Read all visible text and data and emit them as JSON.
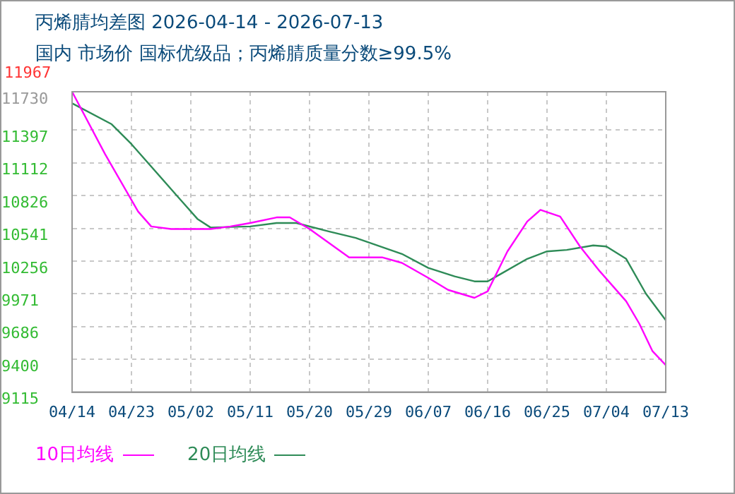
{
  "chart_data": {
    "type": "line",
    "title": "丙烯腈均差图 2026-04-14 - 2026-07-13",
    "subtitle": "国内 市场价 国标优级品；丙烯腈质量分数≥99.5%",
    "annotations": [
      "11967"
    ],
    "series": [
      {
        "name": "10日均线",
        "color": "#ff00ff",
        "x": [
          "--04-14",
          "--04-19",
          "--04-24",
          "--04-26",
          "--04-29",
          "--05-05",
          "--05-08",
          "--05-11",
          "--05-15",
          "--05-17",
          "--05-20",
          "--05-26",
          "--05-31",
          "--06-03",
          "--06-07",
          "--06-10",
          "--06-14",
          "--06-16",
          "--06-19",
          "--06-22",
          "--06-24",
          "--06-27",
          "--06-30",
          "--07-03",
          "--07-07",
          "--07-09",
          "--07-11",
          "--07-13"
        ],
        "values": [
          11730,
          11187,
          10688,
          10557,
          10535,
          10535,
          10557,
          10587,
          10636,
          10636,
          10535,
          10288,
          10288,
          10240,
          10109,
          10005,
          9936,
          9992,
          10340,
          10600,
          10701,
          10643,
          10383,
          10167,
          9906,
          9710,
          9471,
          9350
        ]
      },
      {
        "name": "20日均线",
        "color": "#2e8b57",
        "x": [
          "--04-14",
          "--04-20",
          "--04-23",
          "--04-30",
          "--05-03",
          "--05-05",
          "--05-11",
          "--05-15",
          "--05-18",
          "--05-23",
          "--05-27",
          "--06-03",
          "--06-07",
          "--06-11",
          "--06-14",
          "--06-16",
          "--06-18",
          "--06-22",
          "--06-25",
          "--06-28",
          "--07-02",
          "--07-04",
          "--07-07",
          "--07-10",
          "--07-13"
        ],
        "values": [
          11630,
          11447,
          11274,
          10818,
          10623,
          10548,
          10557,
          10587,
          10587,
          10513,
          10457,
          10318,
          10196,
          10122,
          10079,
          10079,
          10144,
          10275,
          10340,
          10353,
          10392,
          10383,
          10275,
          9971,
          9740
        ]
      }
    ],
    "xlim": [
      "--04-14",
      "--07-13"
    ],
    "xticks": [
      {
        "value": "--04-14",
        "label": "04/14"
      },
      {
        "value": "--04-23",
        "label": "04/23"
      },
      {
        "value": "--05-02",
        "label": "05/02"
      },
      {
        "value": "--05-11",
        "label": "05/11"
      },
      {
        "value": "--05-20",
        "label": "05/20"
      },
      {
        "value": "--05-29",
        "label": "05/29"
      },
      {
        "value": "--06-07",
        "label": "06/07"
      },
      {
        "value": "--06-16",
        "label": "06/16"
      },
      {
        "value": "--06-25",
        "label": "06/25"
      },
      {
        "value": "--07-04",
        "label": "07/04"
      },
      {
        "value": "--07-13",
        "label": "07/13"
      }
    ],
    "ylim": [
      9115,
      11730
    ],
    "yticks": [
      9115,
      9400,
      9686,
      9971,
      10256,
      10541,
      10826,
      11112,
      11397,
      11730
    ],
    "grid": true,
    "legend": "bottom left",
    "marker": "none",
    "line_style": "solid"
  }
}
